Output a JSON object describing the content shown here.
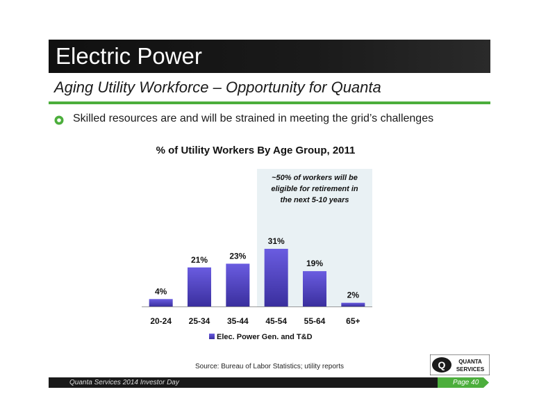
{
  "header": {
    "title": "Electric Power",
    "subtitle": "Aging Utility Workforce – Opportunity for Quanta"
  },
  "bullet": {
    "text": "Skilled resources are and will be strained in meeting the grid’s challenges",
    "icon": "bullet-circle-icon"
  },
  "chart_data": {
    "type": "bar",
    "title": "% of Utility Workers By Age Group, 2011",
    "categories": [
      "20-24",
      "25-34",
      "35-44",
      "45-54",
      "55-64",
      "65+"
    ],
    "series": [
      {
        "name": "Elec. Power Gen. and T&D",
        "values": [
          4,
          21,
          23,
          31,
          19,
          2
        ]
      }
    ],
    "data_labels": [
      "4%",
      "21%",
      "23%",
      "31%",
      "19%",
      "2%"
    ],
    "ylim": [
      0,
      31
    ],
    "grid": false,
    "legend": "bottom",
    "annotation": [
      "~50% of workers will be",
      "eligible for retirement in",
      "the next 5-10 years"
    ],
    "highlight_categories": [
      "45-54",
      "55-64",
      "65+"
    ],
    "colors": {
      "bar_top": "#6a5ce0",
      "bar_bottom": "#3a2f9e",
      "highlight_bg": "#e9f1f4"
    }
  },
  "source": "Source: Bureau of Labor Statistics; utility reports",
  "logo": {
    "line1": "QUANTA",
    "line2": "SERVICES",
    "mark": "Q"
  },
  "footer": {
    "left": "Quanta Services 2014 Investor Day",
    "page": "Page 40"
  },
  "colors": {
    "accent_green": "#4cae3c",
    "title_bar": "#101010"
  }
}
